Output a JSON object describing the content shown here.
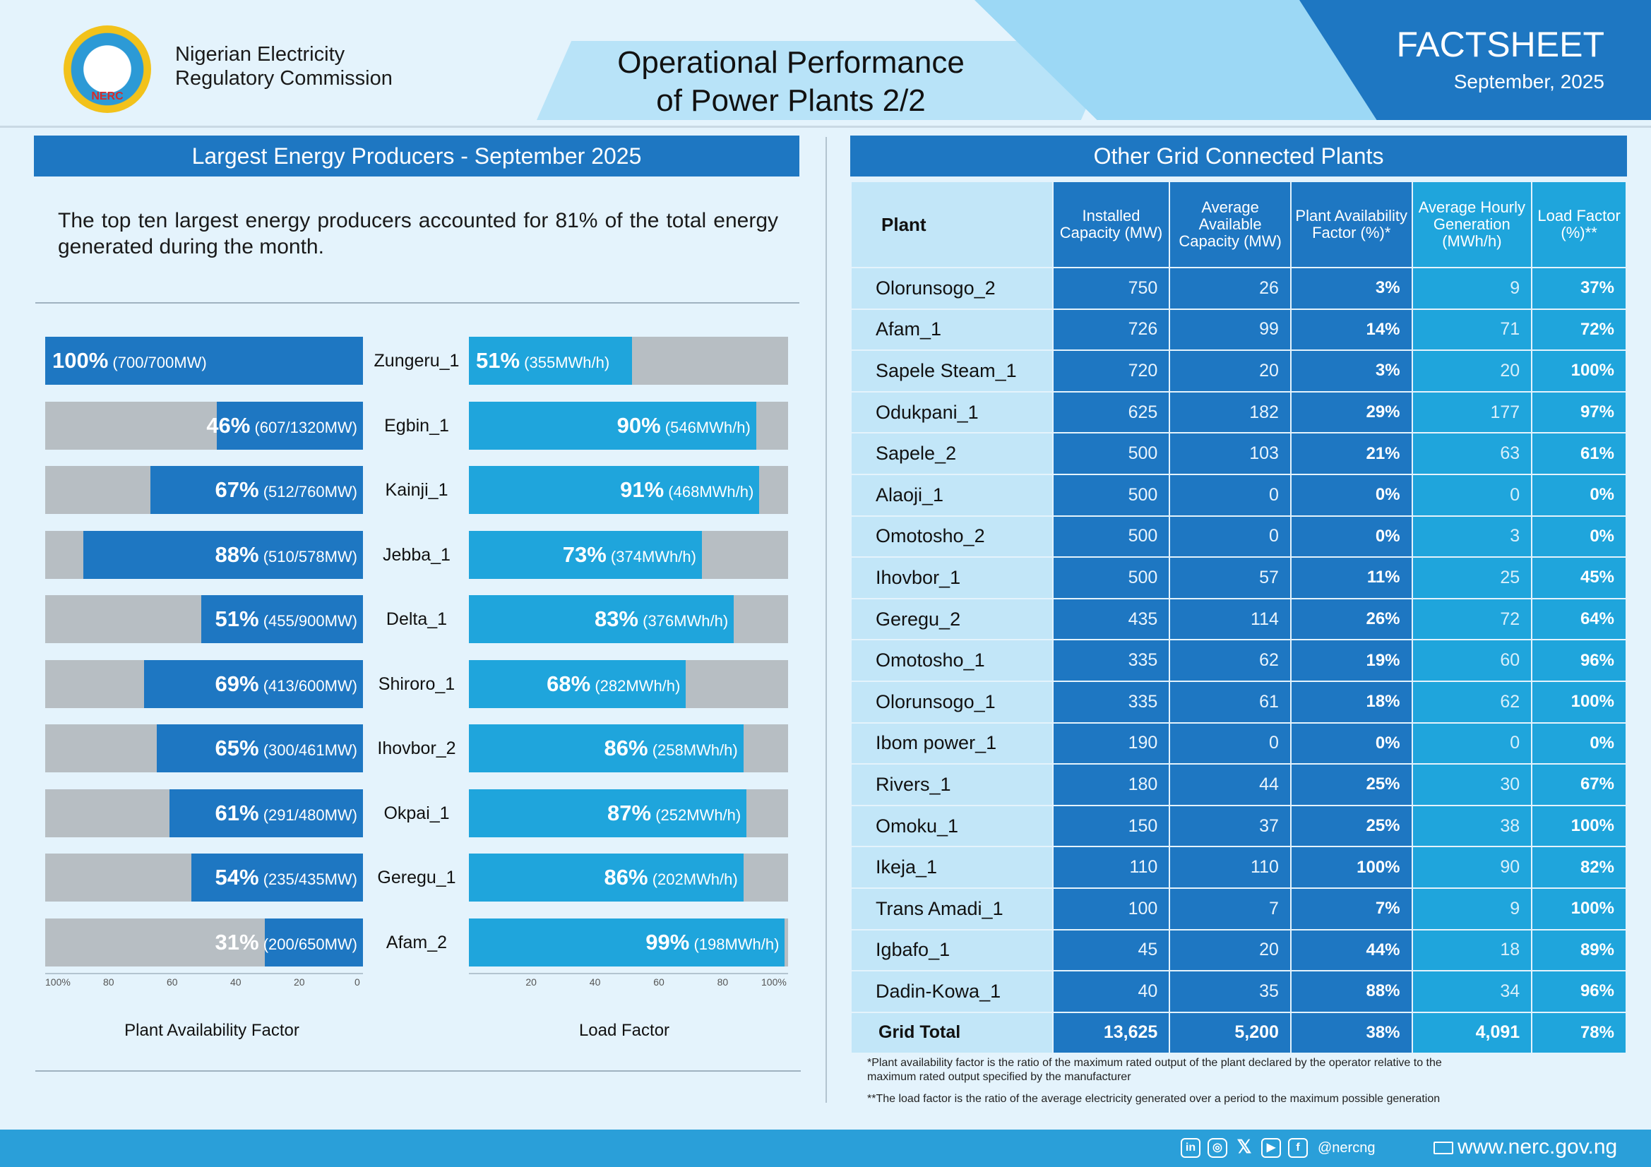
{
  "header": {
    "org_line1": "Nigerian Electricity",
    "org_line2": "Regulatory Commission",
    "logo_text": "NERC",
    "title_line1": "Operational Performance",
    "title_line2": "of Power Plants 2/2",
    "factsheet": "FACTSHEET",
    "date": "September, 2025"
  },
  "left": {
    "heading": "Largest Energy Producers - September 2025",
    "intro": "The top ten largest energy producers accounted for 81% of the total energy generated during the month."
  },
  "right": {
    "heading": "Other Grid Connected Plants"
  },
  "chart_data": [
    {
      "type": "bar",
      "title": "Plant Availability Factor",
      "orientation": "horizontal",
      "direction": "right-to-left",
      "xlim": [
        0,
        100
      ],
      "ticks": [
        "100%",
        "80",
        "60",
        "40",
        "20",
        "0"
      ],
      "categories": [
        "Zungeru_1",
        "Egbin_1",
        "Kainji_1",
        "Jebba_1",
        "Delta_1",
        "Shiroro_1",
        "Ihovbor_2",
        "Okpai_1",
        "Geregu_1",
        "Afam_2"
      ],
      "values": [
        100,
        46,
        67,
        88,
        51,
        69,
        65,
        61,
        54,
        31
      ],
      "labels": [
        "100%",
        "46%",
        "67%",
        "88%",
        "51%",
        "69%",
        "65%",
        "61%",
        "54%",
        "31%"
      ],
      "details": [
        "(700/700MW)",
        "(607/1320MW)",
        "(512/760MW)",
        "(510/578MW)",
        "(455/900MW)",
        "(413/600MW)",
        "(300/461MW)",
        "(291/480MW)",
        "(235/435MW)",
        "(200/650MW)"
      ]
    },
    {
      "type": "bar",
      "title": "Load Factor",
      "orientation": "horizontal",
      "direction": "left-to-right",
      "xlim": [
        0,
        100
      ],
      "ticks": [
        "20",
        "40",
        "60",
        "80",
        "100%"
      ],
      "categories": [
        "Zungeru_1",
        "Egbin_1",
        "Kainji_1",
        "Jebba_1",
        "Delta_1",
        "Shiroro_1",
        "Ihovbor_2",
        "Okpai_1",
        "Geregu_1",
        "Afam_2"
      ],
      "values": [
        51,
        90,
        91,
        73,
        83,
        68,
        86,
        87,
        86,
        99
      ],
      "labels": [
        "51%",
        "90%",
        "91%",
        "73%",
        "83%",
        "68%",
        "86%",
        "87%",
        "86%",
        "99%"
      ],
      "details": [
        "(355MWh/h)",
        "(546MWh/h)",
        "(468MWh/h)",
        "(374MWh/h)",
        "(376MWh/h)",
        "(282MWh/h)",
        "(258MWh/h)",
        "(252MWh/h)",
        "(202MWh/h)",
        "(198MWh/h)"
      ]
    },
    {
      "type": "table",
      "columns": [
        "Plant",
        "Installed Capacity (MW)",
        "Average Available Capacity (MW)",
        "Plant Availability Factor (%)*",
        "Average Hourly Generation (MWh/h)",
        "Load Factor (%)**"
      ],
      "rows": [
        [
          "Olorunsogo_2",
          "750",
          "26",
          "3%",
          "9",
          "37%"
        ],
        [
          "Afam_1",
          "726",
          "99",
          "14%",
          "71",
          "72%"
        ],
        [
          "Sapele Steam_1",
          "720",
          "20",
          "3%",
          "20",
          "100%"
        ],
        [
          "Odukpani_1",
          "625",
          "182",
          "29%",
          "177",
          "97%"
        ],
        [
          "Sapele_2",
          "500",
          "103",
          "21%",
          "63",
          "61%"
        ],
        [
          "Alaoji_1",
          "500",
          "0",
          "0%",
          "0",
          "0%"
        ],
        [
          "Omotosho_2",
          "500",
          "0",
          "0%",
          "3",
          "0%"
        ],
        [
          "Ihovbor_1",
          "500",
          "57",
          "11%",
          "25",
          "45%"
        ],
        [
          "Geregu_2",
          "435",
          "114",
          "26%",
          "72",
          "64%"
        ],
        [
          "Omotosho_1",
          "335",
          "62",
          "19%",
          "60",
          "96%"
        ],
        [
          "Olorunsogo_1",
          "335",
          "61",
          "18%",
          "62",
          "100%"
        ],
        [
          "Ibom power_1",
          "190",
          "0",
          "0%",
          "0",
          "0%"
        ],
        [
          "Rivers_1",
          "180",
          "44",
          "25%",
          "30",
          "67%"
        ],
        [
          "Omoku_1",
          "150",
          "37",
          "25%",
          "38",
          "100%"
        ],
        [
          "Ikeja_1",
          "110",
          "110",
          "100%",
          "90",
          "82%"
        ],
        [
          "Trans Amadi_1",
          "100",
          "7",
          "7%",
          "9",
          "100%"
        ],
        [
          "Igbafo_1",
          "45",
          "20",
          "44%",
          "18",
          "89%"
        ],
        [
          "Dadin-Kowa_1",
          "40",
          "35",
          "88%",
          "34",
          "96%"
        ]
      ],
      "total": [
        "Grid Total",
        "13,625",
        "5,200",
        "38%",
        "4,091",
        "78%"
      ]
    }
  ],
  "notes": {
    "note1": "*Plant availability factor is the ratio of the maximum rated output of the plant declared by the operator relative to the maximum rated output specified by the manufacturer",
    "note2": "**The load factor is the ratio of the average electricity generated over a period to the maximum possible generation"
  },
  "footer": {
    "icons": [
      "linkedin-icon",
      "instagram-icon",
      "x-icon",
      "youtube-icon",
      "facebook-icon"
    ],
    "handle": "@nercng",
    "website": "www.nerc.gov.ng"
  },
  "colors": {
    "primary": "#1e77c2",
    "light_blue": "#1fa5dc",
    "bar_track": "#b7bec3",
    "plant_cell": "#c2e6f8",
    "background": "#e4f3fc"
  }
}
